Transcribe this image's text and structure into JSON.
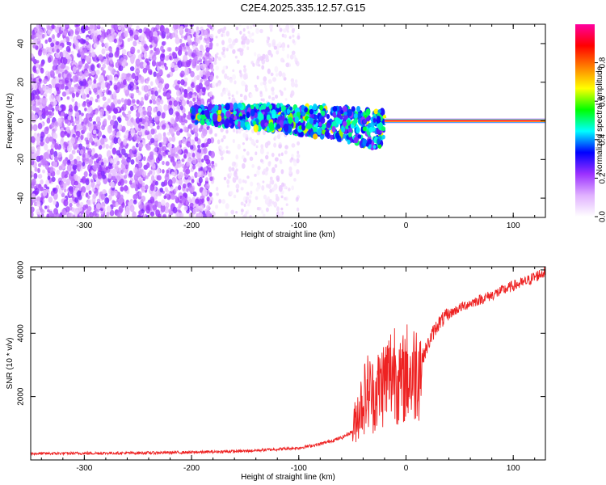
{
  "title": "C2E4.2025.335.12.57.G15",
  "chart_data": [
    {
      "type": "heatmap",
      "xlabel": "Height of straight line (km)",
      "ylabel": "Frequency (Hz)",
      "xlim": [
        -350,
        130
      ],
      "ylim": [
        -50,
        50
      ],
      "xticks": [
        -300,
        -200,
        -100,
        0,
        100
      ],
      "yticks": [
        -40,
        -20,
        0,
        20,
        40
      ],
      "colorbar": {
        "label": "Normalized spectral amplitude",
        "range": [
          0,
          1
        ],
        "ticks": [
          "0.0",
          "0.2",
          "0.4",
          "0.6",
          "0.8"
        ],
        "colors": [
          "#ffffff",
          "#e0b0ff",
          "#9b30ff",
          "#0000ff",
          "#00ffff",
          "#00ff00",
          "#ffff00",
          "#ff8000",
          "#ff0000",
          "#ff00a0"
        ]
      },
      "features": [
        {
          "x_range": [
            -350,
            -180
          ],
          "f_range": [
            -50,
            50
          ],
          "amplitude": 0.15,
          "note_type": "scattered noise"
        },
        {
          "x_range": [
            -180,
            -100
          ],
          "f_range": [
            -50,
            50
          ],
          "amplitude": 0.05,
          "note_type": "sparse noise"
        },
        {
          "x_range": [
            -200,
            -20
          ],
          "f_range": [
            -15,
            8
          ],
          "amplitude": 0.35,
          "note_type": "band"
        },
        {
          "x_range": [
            -20,
            130
          ],
          "f_range": [
            -1,
            1
          ],
          "amplitude": 0.95,
          "note_type": "carrier line"
        }
      ]
    },
    {
      "type": "line",
      "xlabel": "Height of straight line (km)",
      "ylabel": "SNR (10 * v/v)",
      "xlim": [
        -350,
        130
      ],
      "ylim": [
        0,
        6100
      ],
      "xticks": [
        -300,
        -200,
        -100,
        0,
        100
      ],
      "yticks": [
        2000,
        4000,
        6000
      ],
      "series": [
        {
          "color": "#ee2222",
          "x": [
            -350,
            -300,
            -250,
            -200,
            -150,
            -100,
            -80,
            -60,
            -50,
            -45,
            -40,
            -35,
            -30,
            -25,
            -20,
            -15,
            -10,
            -5,
            0,
            5,
            10,
            15,
            20,
            25,
            30,
            40,
            50,
            60,
            80,
            100,
            110,
            130
          ],
          "y": [
            200,
            210,
            220,
            240,
            280,
            380,
            500,
            700,
            900,
            1500,
            1900,
            2200,
            2000,
            2300,
            2500,
            2700,
            3000,
            2300,
            2800,
            2600,
            2900,
            3200,
            3600,
            4000,
            4300,
            4600,
            4800,
            4950,
            5200,
            5500,
            5600,
            5950
          ]
        }
      ]
    }
  ]
}
